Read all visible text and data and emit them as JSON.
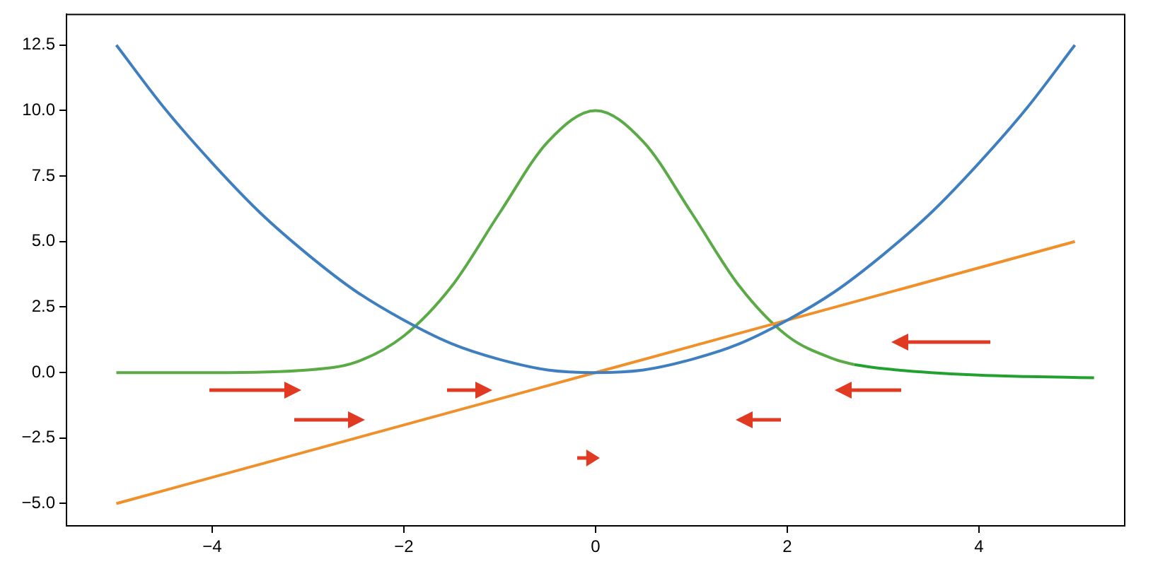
{
  "chart_data": {
    "type": "line",
    "grid": false,
    "legend": false,
    "marker": "none",
    "line_style": "solid",
    "xlim": [
      -5.52,
      5.52
    ],
    "ylim": [
      -5.85,
      13.67
    ],
    "xticks": [
      -4,
      -2,
      0,
      2,
      4
    ],
    "yticks": [
      {
        "value": -5,
        "label": "−5.0"
      },
      {
        "value": -2.5,
        "label": "−2.5"
      },
      {
        "value": 0,
        "label": "0.0"
      },
      {
        "value": 2.5,
        "label": "2.5"
      },
      {
        "value": 5,
        "label": "5.0"
      },
      {
        "value": 7.5,
        "label": "7.5"
      },
      {
        "value": 10,
        "label": "10.0"
      },
      {
        "value": 12.5,
        "label": "12.5"
      }
    ],
    "series": [
      {
        "color": "#3f7fbf",
        "x": [
          -5,
          -4.5,
          -4,
          -3.5,
          -3,
          -2.5,
          -2,
          -1.5,
          -1,
          -0.5,
          0,
          0.5,
          1,
          1.5,
          2,
          2.5,
          3,
          3.5,
          4,
          4.5,
          5
        ],
        "values": [
          12.5,
          10.1,
          8,
          6.1,
          4.5,
          3.1,
          2,
          1.1,
          0.5,
          0.1,
          0,
          0.1,
          0.5,
          1.1,
          2,
          3.1,
          4.5,
          6.1,
          8,
          10.1,
          12.5
        ]
      },
      {
        "color": "#f0902a",
        "x": [
          -5,
          5
        ],
        "values": [
          -5,
          5
        ]
      },
      {
        "color": "#5aaa46",
        "x": [
          -5,
          -4,
          -3,
          -2.5,
          -2,
          -1.5,
          -1,
          -0.5,
          0,
          0.5,
          1,
          1.5,
          2,
          2.5,
          2.7
        ],
        "values": [
          0,
          0,
          0.1,
          0.4,
          1.4,
          3.3,
          6.1,
          8.8,
          10,
          8.8,
          6.1,
          3.3,
          1.4,
          0.5,
          0.3
        ]
      },
      {
        "color": "#22a030",
        "x": [
          2.7,
          3,
          3.5,
          4,
          4.5,
          5.2
        ],
        "values": [
          0.3,
          0.15,
          0,
          -0.1,
          -0.15,
          -0.2
        ]
      }
    ]
  }
}
